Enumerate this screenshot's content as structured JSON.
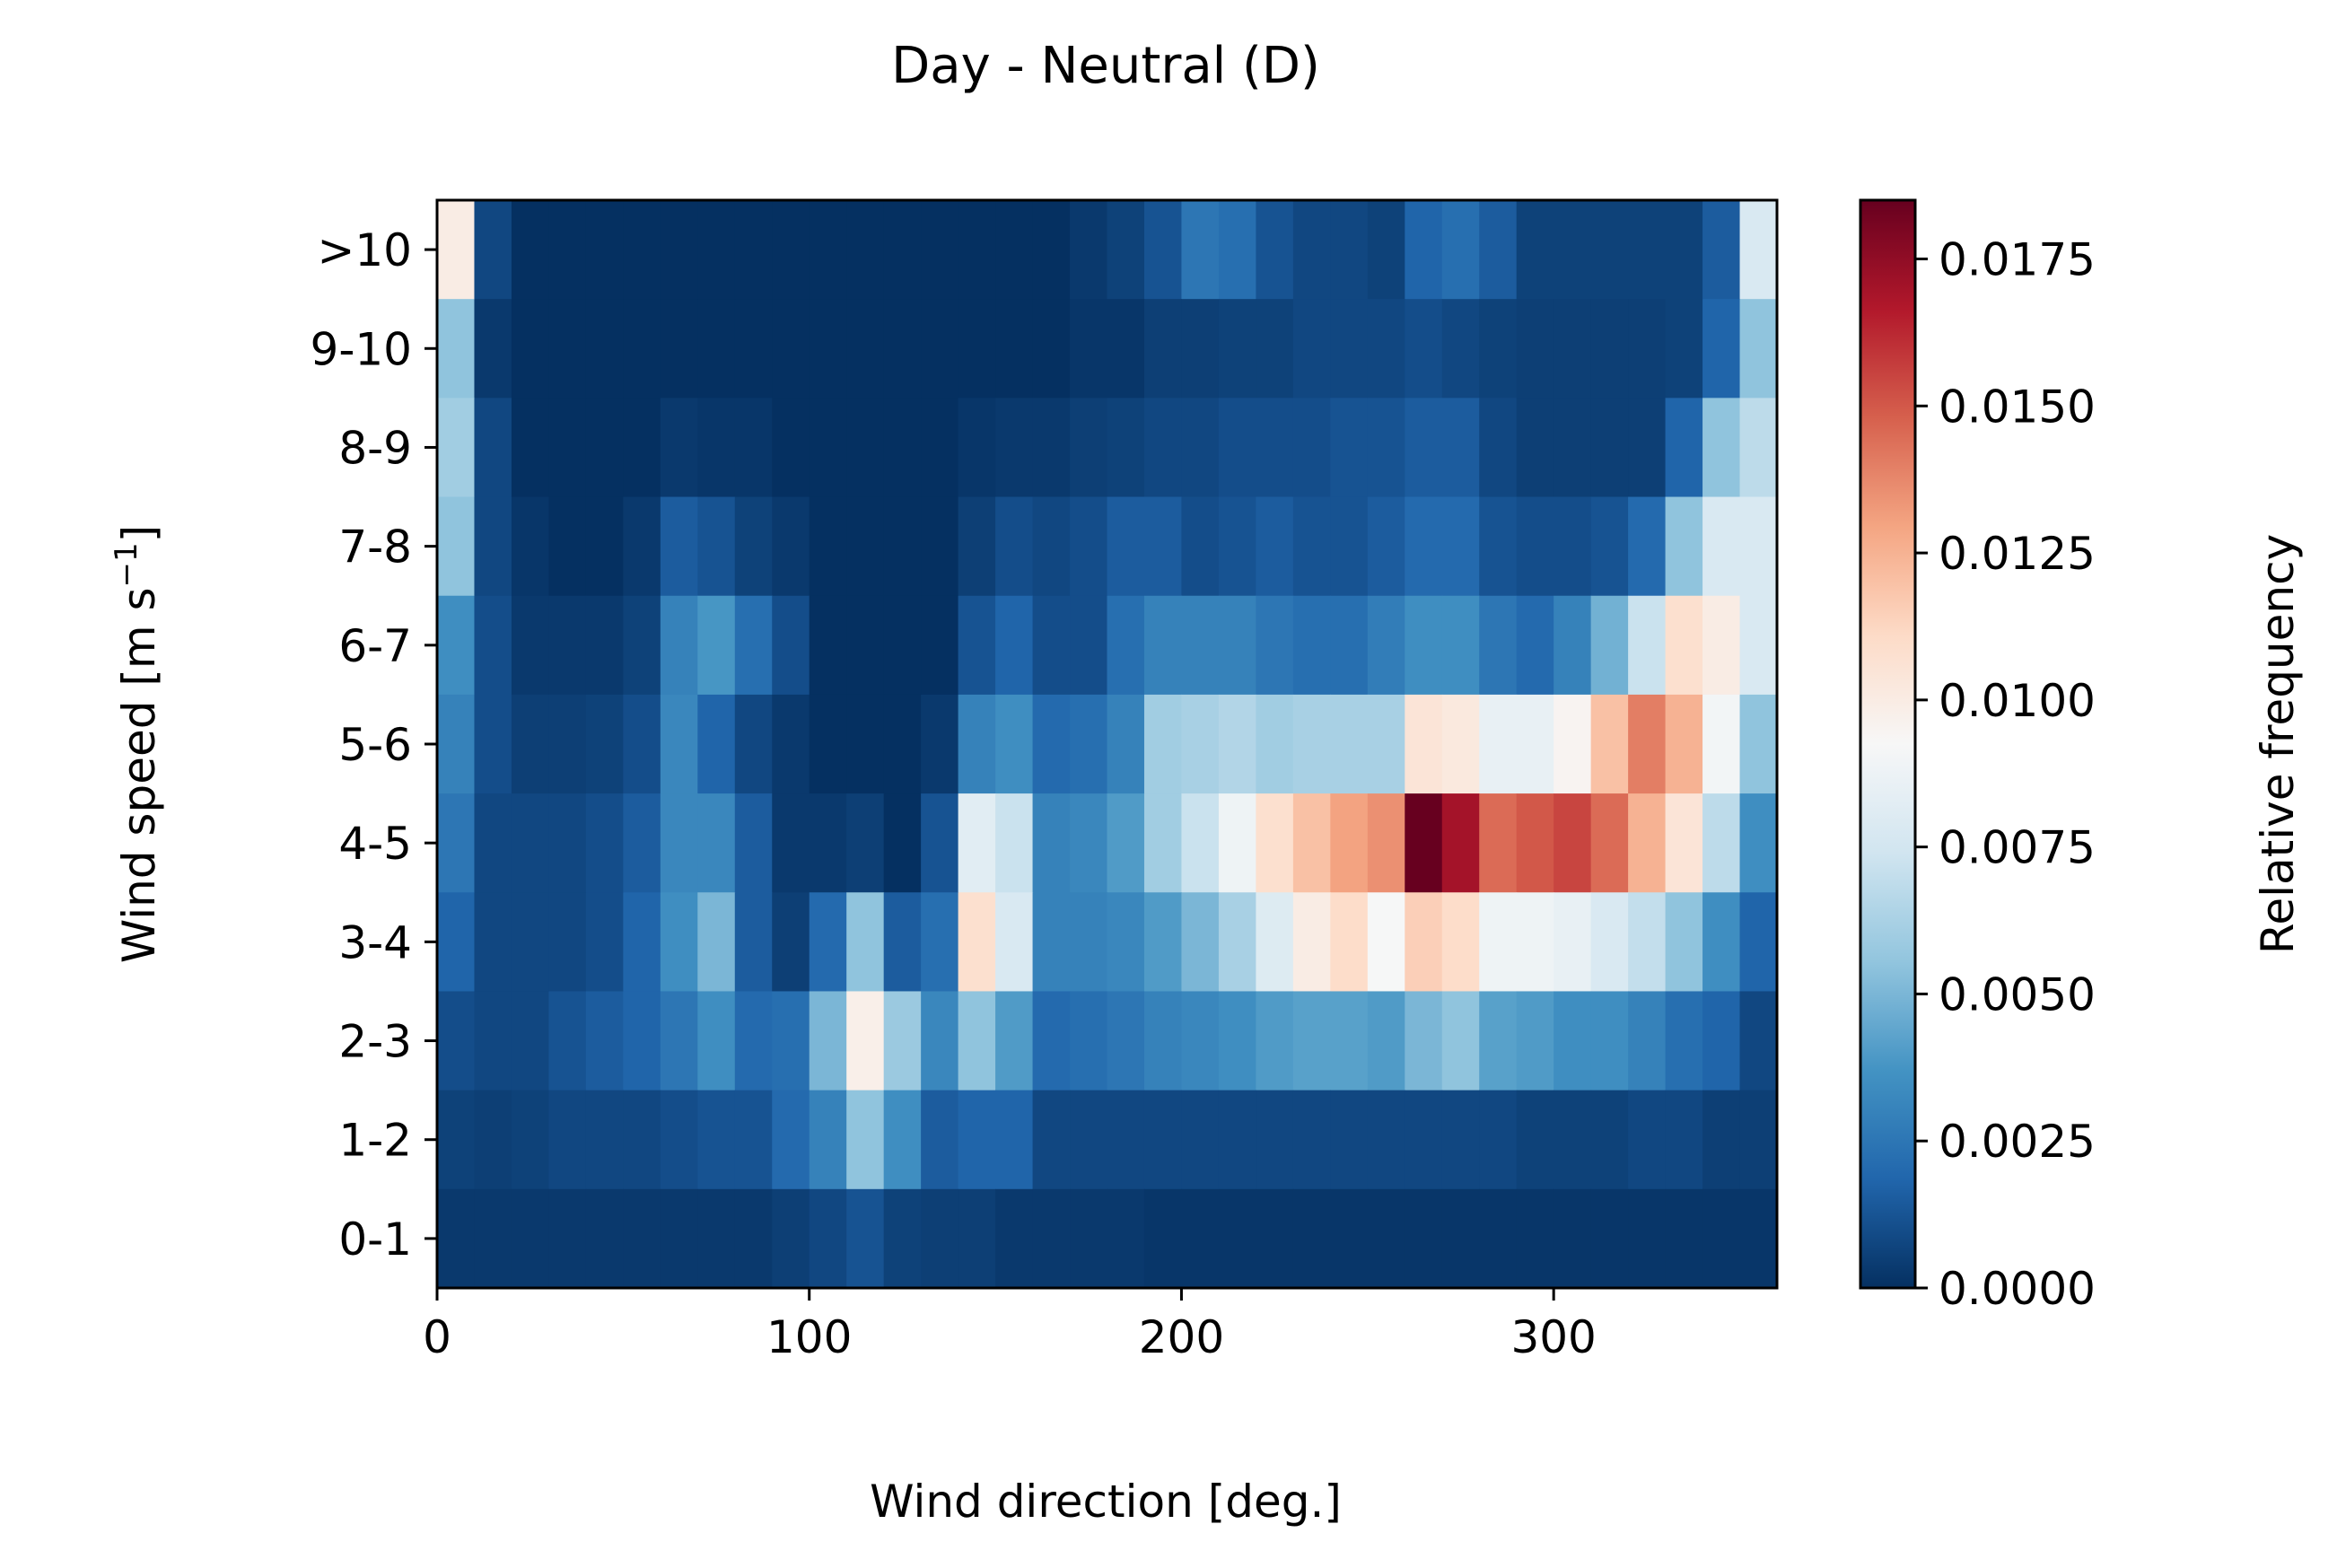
{
  "chart_data": {
    "type": "heatmap",
    "title": "Day - Neutral (D)",
    "xlabel": "Wind direction [deg.]",
    "ylabel_main": "Wind speed [m s",
    "ylabel_sup": "−1",
    "ylabel_end": "]",
    "xlim": [
      0,
      360
    ],
    "x_bin_width": 10,
    "x_ticks": [
      0,
      100,
      200,
      300
    ],
    "y_categories": [
      "0-1",
      "1-2",
      "2-3",
      "3-4",
      "4-5",
      "5-6",
      "6-7",
      "7-8",
      "8-9",
      "9-10",
      ">10"
    ],
    "colorbar": {
      "label": "Relative frequency",
      "colormap": "RdBu_r",
      "vmin": 0.0,
      "vmax": 0.0185,
      "ticks": [
        "0.0000",
        "0.0025",
        "0.0050",
        "0.0075",
        "0.0100",
        "0.0125",
        "0.0150",
        "0.0175"
      ],
      "tick_values": [
        0.0,
        0.0025,
        0.005,
        0.0075,
        0.01,
        0.0125,
        0.015,
        0.0175
      ]
    },
    "grid": false,
    "rows_top_to_bottom": [
      {
        "label": ">10",
        "values": [
          0.01,
          0.0008,
          0.0,
          0.0,
          0.0,
          0.0,
          0.0,
          0.0,
          0.0,
          0.0,
          0.0,
          0.0,
          0.0,
          0.0,
          0.0,
          0.0,
          0.0,
          0.0003,
          0.0006,
          0.0012,
          0.0025,
          0.0022,
          0.0012,
          0.0008,
          0.0008,
          0.0006,
          0.0018,
          0.0022,
          0.0015,
          0.0006,
          0.0006,
          0.0006,
          0.0006,
          0.0006,
          0.0015,
          0.0078
        ]
      },
      {
        "label": "9-10",
        "values": [
          0.0055,
          0.0003,
          0.0,
          0.0,
          0.0,
          0.0,
          0.0,
          0.0,
          0.0,
          0.0,
          0.0,
          0.0,
          0.0,
          0.0,
          0.0,
          0.0,
          0.0,
          0.0002,
          0.0002,
          0.0005,
          0.0005,
          0.0006,
          0.0006,
          0.0008,
          0.0008,
          0.0008,
          0.001,
          0.0008,
          0.0006,
          0.0005,
          0.0005,
          0.0005,
          0.0005,
          0.0006,
          0.0018,
          0.0055
        ]
      },
      {
        "label": "8-9",
        "values": [
          0.006,
          0.0008,
          0.0,
          0.0,
          0.0,
          0.0,
          0.0003,
          0.0002,
          0.0002,
          0.0,
          0.0,
          0.0,
          0.0,
          0.0,
          0.0002,
          0.0003,
          0.0003,
          0.0005,
          0.0006,
          0.0008,
          0.0008,
          0.001,
          0.001,
          0.001,
          0.0012,
          0.0012,
          0.0015,
          0.0015,
          0.0008,
          0.0005,
          0.0005,
          0.0005,
          0.0005,
          0.0018,
          0.0055,
          0.0068
        ]
      },
      {
        "label": "7-8",
        "values": [
          0.0055,
          0.0008,
          0.0002,
          0.0,
          0.0,
          0.0003,
          0.0015,
          0.0012,
          0.0006,
          0.0003,
          0.0,
          0.0,
          0.0,
          0.0,
          0.0005,
          0.001,
          0.0008,
          0.001,
          0.0015,
          0.0015,
          0.001,
          0.0012,
          0.0015,
          0.0012,
          0.0012,
          0.0015,
          0.002,
          0.002,
          0.0012,
          0.001,
          0.001,
          0.0012,
          0.002,
          0.0055,
          0.0078,
          0.0078
        ]
      },
      {
        "label": "6-7",
        "values": [
          0.0035,
          0.001,
          0.0003,
          0.0003,
          0.0003,
          0.0006,
          0.003,
          0.0038,
          0.0022,
          0.001,
          0.0,
          0.0,
          0.0,
          0.0,
          0.0012,
          0.0018,
          0.001,
          0.001,
          0.0022,
          0.003,
          0.003,
          0.003,
          0.0025,
          0.0022,
          0.0022,
          0.0028,
          0.0035,
          0.0035,
          0.0025,
          0.002,
          0.003,
          0.0048,
          0.0072,
          0.0108,
          0.01,
          0.0078
        ]
      },
      {
        "label": "5-6",
        "values": [
          0.003,
          0.001,
          0.0005,
          0.0005,
          0.0006,
          0.001,
          0.0032,
          0.0018,
          0.0008,
          0.0003,
          0.0,
          0.0,
          0.0,
          0.0003,
          0.003,
          0.0035,
          0.002,
          0.0022,
          0.003,
          0.006,
          0.0062,
          0.0065,
          0.006,
          0.0062,
          0.0062,
          0.0062,
          0.0105,
          0.0102,
          0.0085,
          0.0085,
          0.0095,
          0.012,
          0.014,
          0.0125,
          0.009,
          0.0055
        ]
      },
      {
        "label": "4-5",
        "values": [
          0.0025,
          0.0008,
          0.0008,
          0.0008,
          0.001,
          0.0015,
          0.0032,
          0.0032,
          0.0015,
          0.0003,
          0.0003,
          0.0005,
          0.0,
          0.0012,
          0.0082,
          0.0072,
          0.003,
          0.0032,
          0.004,
          0.006,
          0.0072,
          0.0088,
          0.0108,
          0.012,
          0.013,
          0.0135,
          0.0185,
          0.017,
          0.0145,
          0.015,
          0.0155,
          0.0145,
          0.0125,
          0.0105,
          0.0068,
          0.0035
        ]
      },
      {
        "label": "3-4",
        "values": [
          0.0018,
          0.0008,
          0.0008,
          0.0008,
          0.001,
          0.0018,
          0.0035,
          0.005,
          0.0015,
          0.0005,
          0.002,
          0.0055,
          0.0015,
          0.0022,
          0.0108,
          0.0078,
          0.003,
          0.003,
          0.0032,
          0.004,
          0.005,
          0.0062,
          0.008,
          0.01,
          0.011,
          0.0092,
          0.0115,
          0.011,
          0.0088,
          0.0088,
          0.0085,
          0.0078,
          0.007,
          0.0055,
          0.0035,
          0.0018
        ]
      },
      {
        "label": "2-3",
        "values": [
          0.001,
          0.0008,
          0.0008,
          0.0012,
          0.0015,
          0.0018,
          0.0025,
          0.0035,
          0.002,
          0.0022,
          0.005,
          0.0098,
          0.0058,
          0.0032,
          0.0055,
          0.004,
          0.002,
          0.0022,
          0.0025,
          0.003,
          0.0032,
          0.0035,
          0.004,
          0.0042,
          0.0042,
          0.004,
          0.005,
          0.0055,
          0.0042,
          0.004,
          0.0035,
          0.0035,
          0.003,
          0.0022,
          0.0018,
          0.0008
        ]
      },
      {
        "label": "1-2",
        "values": [
          0.0006,
          0.0005,
          0.0006,
          0.0008,
          0.0008,
          0.0008,
          0.001,
          0.0012,
          0.0012,
          0.002,
          0.003,
          0.0055,
          0.0035,
          0.0015,
          0.0018,
          0.0018,
          0.0008,
          0.0008,
          0.0008,
          0.0008,
          0.0008,
          0.0008,
          0.0008,
          0.0008,
          0.0008,
          0.0008,
          0.0008,
          0.0008,
          0.0008,
          0.0006,
          0.0006,
          0.0006,
          0.0008,
          0.0008,
          0.0005,
          0.0005
        ]
      },
      {
        "label": "0-1",
        "values": [
          0.0003,
          0.0003,
          0.0003,
          0.0003,
          0.0003,
          0.0003,
          0.0003,
          0.0003,
          0.0003,
          0.0005,
          0.0008,
          0.0012,
          0.0006,
          0.0005,
          0.0005,
          0.0003,
          0.0003,
          0.0003,
          0.0003,
          0.0002,
          0.0002,
          0.0002,
          0.0002,
          0.0002,
          0.0002,
          0.0002,
          0.0002,
          0.0002,
          0.0002,
          0.0002,
          0.0002,
          0.0002,
          0.0002,
          0.0002,
          0.0002,
          0.0002
        ]
      }
    ]
  }
}
